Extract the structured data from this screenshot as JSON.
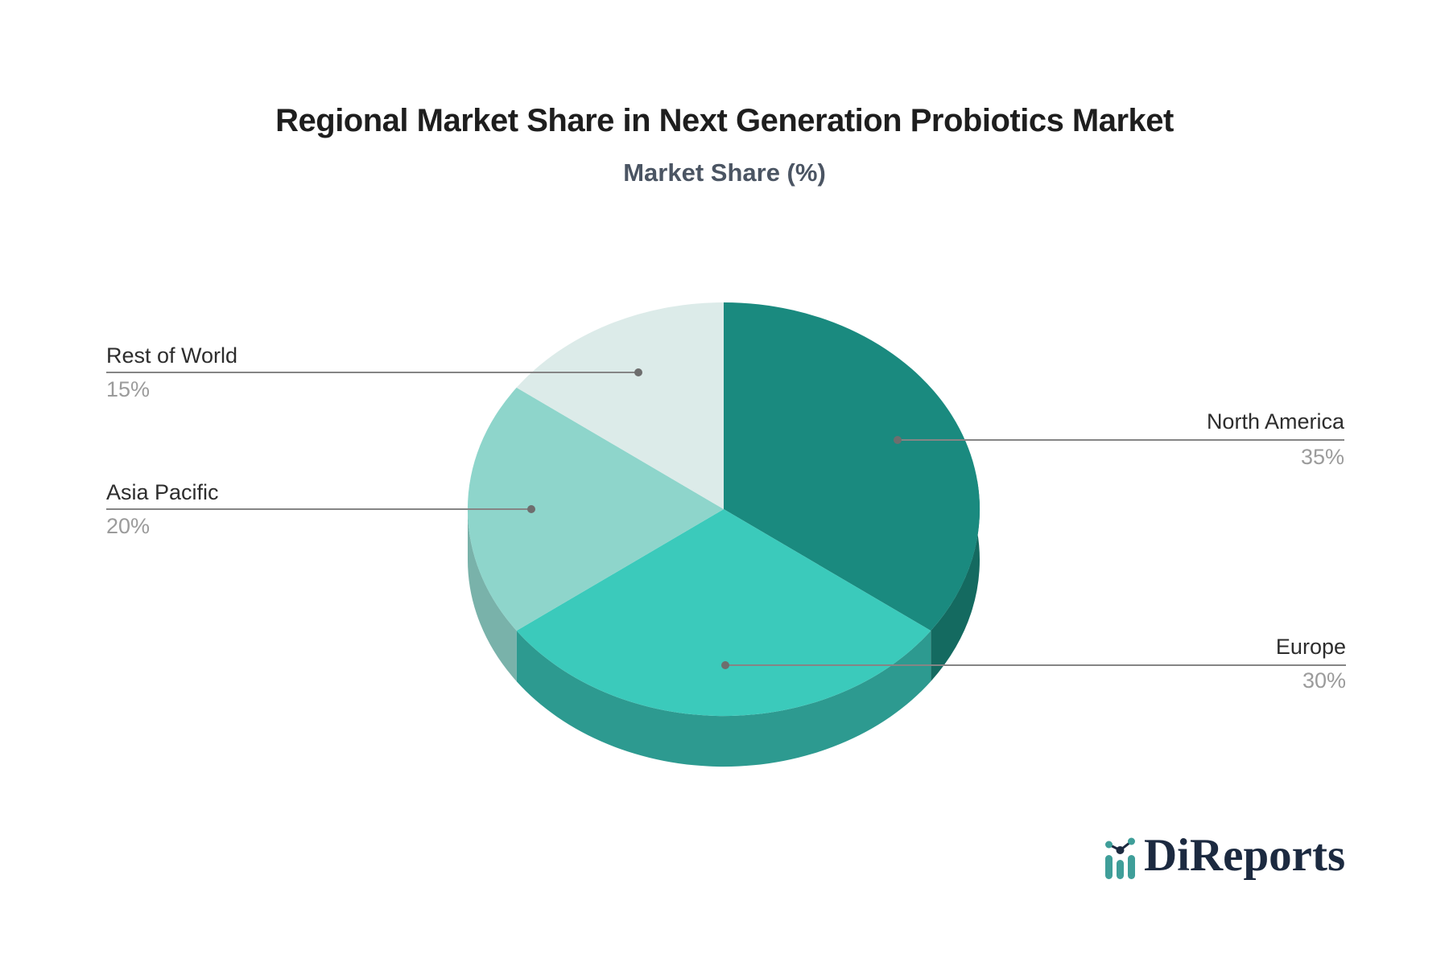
{
  "header": {
    "title": "Regional Market Share in Next Generation Probiotics Market",
    "subtitle": "Market Share (%)"
  },
  "chart_data": {
    "type": "pie",
    "style": "3d-pie",
    "title": "Regional Market Share in Next Generation Probiotics Market",
    "subtitle": "Market Share (%)",
    "unit": "%",
    "start_angle_deg": 90,
    "direction": "clockwise",
    "legend_position": "callout-labels",
    "slices": [
      {
        "label": "North America",
        "value": 35,
        "display": "35%",
        "color": "#1a8a7f",
        "side_color": "#146a60",
        "label_side": "right"
      },
      {
        "label": "Europe",
        "value": 30,
        "display": "30%",
        "color": "#3bcabb",
        "side_color": "#2d9a90",
        "label_side": "right"
      },
      {
        "label": "Asia Pacific",
        "value": 20,
        "display": "20%",
        "color": "#8ed5cb",
        "side_color": "#79b2aa",
        "label_side": "left"
      },
      {
        "label": "Rest of World",
        "value": 15,
        "display": "15%",
        "color": "#dcebe9",
        "side_color": "#c2d8d4",
        "label_side": "left"
      }
    ]
  },
  "branding": {
    "logo_text": "DiReports",
    "logo_icon": "bar-line-chart-icon"
  },
  "style": {
    "background": "#ffffff",
    "title_color": "#1e1e1e",
    "subtitle_color": "#4b5563",
    "label_color": "#2d2d2d",
    "percent_color": "#9b9b9b",
    "connector_color": "#858585",
    "connector_dot_color": "#6e6e6e",
    "logo_navy": "#1c2a40",
    "logo_teal": "#3f9e99"
  }
}
